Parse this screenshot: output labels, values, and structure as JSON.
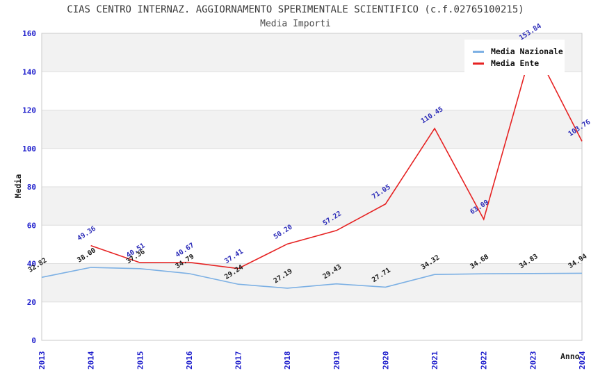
{
  "title": "CIAS CENTRO INTERNAZ. AGGIORNAMENTO SPERIMENTALE SCIENTIFICO (c.f.02765100215)",
  "subtitle": "Media Importi",
  "chart_data": {
    "type": "line",
    "x": [
      "2013",
      "2014",
      "2015",
      "2016",
      "2017",
      "2018",
      "2019",
      "2020",
      "2021",
      "2022",
      "2023",
      "2024"
    ],
    "series": [
      {
        "name": "Media Nazionale",
        "color": "#7CB0E4",
        "label_color": "#1a1a1a",
        "values": [
          32.82,
          38.0,
          37.36,
          34.79,
          29.24,
          27.19,
          29.43,
          27.71,
          34.32,
          34.68,
          34.83,
          34.94
        ]
      },
      {
        "name": "Media Ente",
        "color": "#E62222",
        "label_color": "#2B2BB8",
        "values": [
          null,
          49.36,
          40.51,
          40.67,
          37.41,
          50.2,
          57.22,
          71.05,
          110.45,
          63.09,
          153.84,
          103.76
        ]
      }
    ],
    "xlabel": "Anno",
    "ylabel": "Media",
    "ylim": [
      0,
      160
    ],
    "yticks": [
      0,
      20,
      40,
      60,
      80,
      100,
      120,
      140,
      160
    ],
    "grid": "alternating-horizontal-bands",
    "legend_position": "top-right",
    "colors": {
      "tick_label": "#1F1FCC",
      "band": "#F2F2F2",
      "grid_line": "#DEDEDE",
      "frame": "#C9C9C9"
    }
  }
}
